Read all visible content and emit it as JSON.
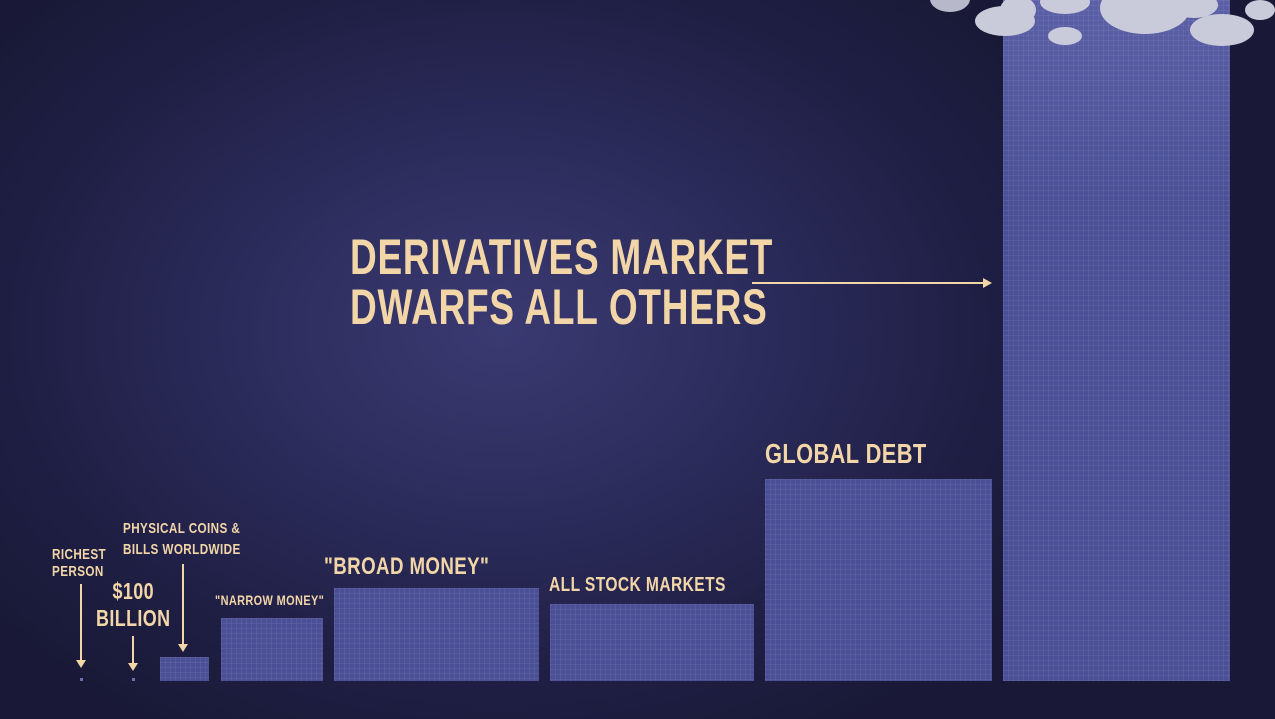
{
  "chart_data": {
    "type": "bar",
    "title": "DERIVATIVES MARKET DWARFS ALL OTHERS",
    "categories": [
      "RICHEST PERSON",
      "$100 BILLION",
      "PHYSICAL COINS & BILLS WORLDWIDE",
      "\"NARROW MONEY\"",
      "\"BROAD MONEY\"",
      "ALL STOCK MARKETS",
      "GLOBAL DEBT",
      "DERIVATIVES MARKET"
    ],
    "values": [
      0.08,
      0.1,
      5,
      28,
      90,
      74,
      200,
      1200
    ],
    "ylim": [
      0,
      1200
    ],
    "grid": false,
    "legend": "none"
  },
  "labels": {
    "richest_line1": "RICHEST",
    "richest_line2": "PERSON",
    "hundred_line1": "$100",
    "hundred_line2": "BILLION",
    "physical_line1": "PHYSICAL COINS &",
    "physical_line2": "BILLS WORLDWIDE",
    "narrow": "\"NARROW MONEY\"",
    "broad": "\"BROAD MONEY\"",
    "stocks": "ALL STOCK MARKETS",
    "debt": "GLOBAL DEBT",
    "headline_line1": "DERIVATIVES MARKET",
    "headline_line2": "DWARFS ALL OTHERS"
  },
  "colors": {
    "bar": "#4b5096",
    "text": "#f2d6a8",
    "background": "#2c2c5c"
  }
}
